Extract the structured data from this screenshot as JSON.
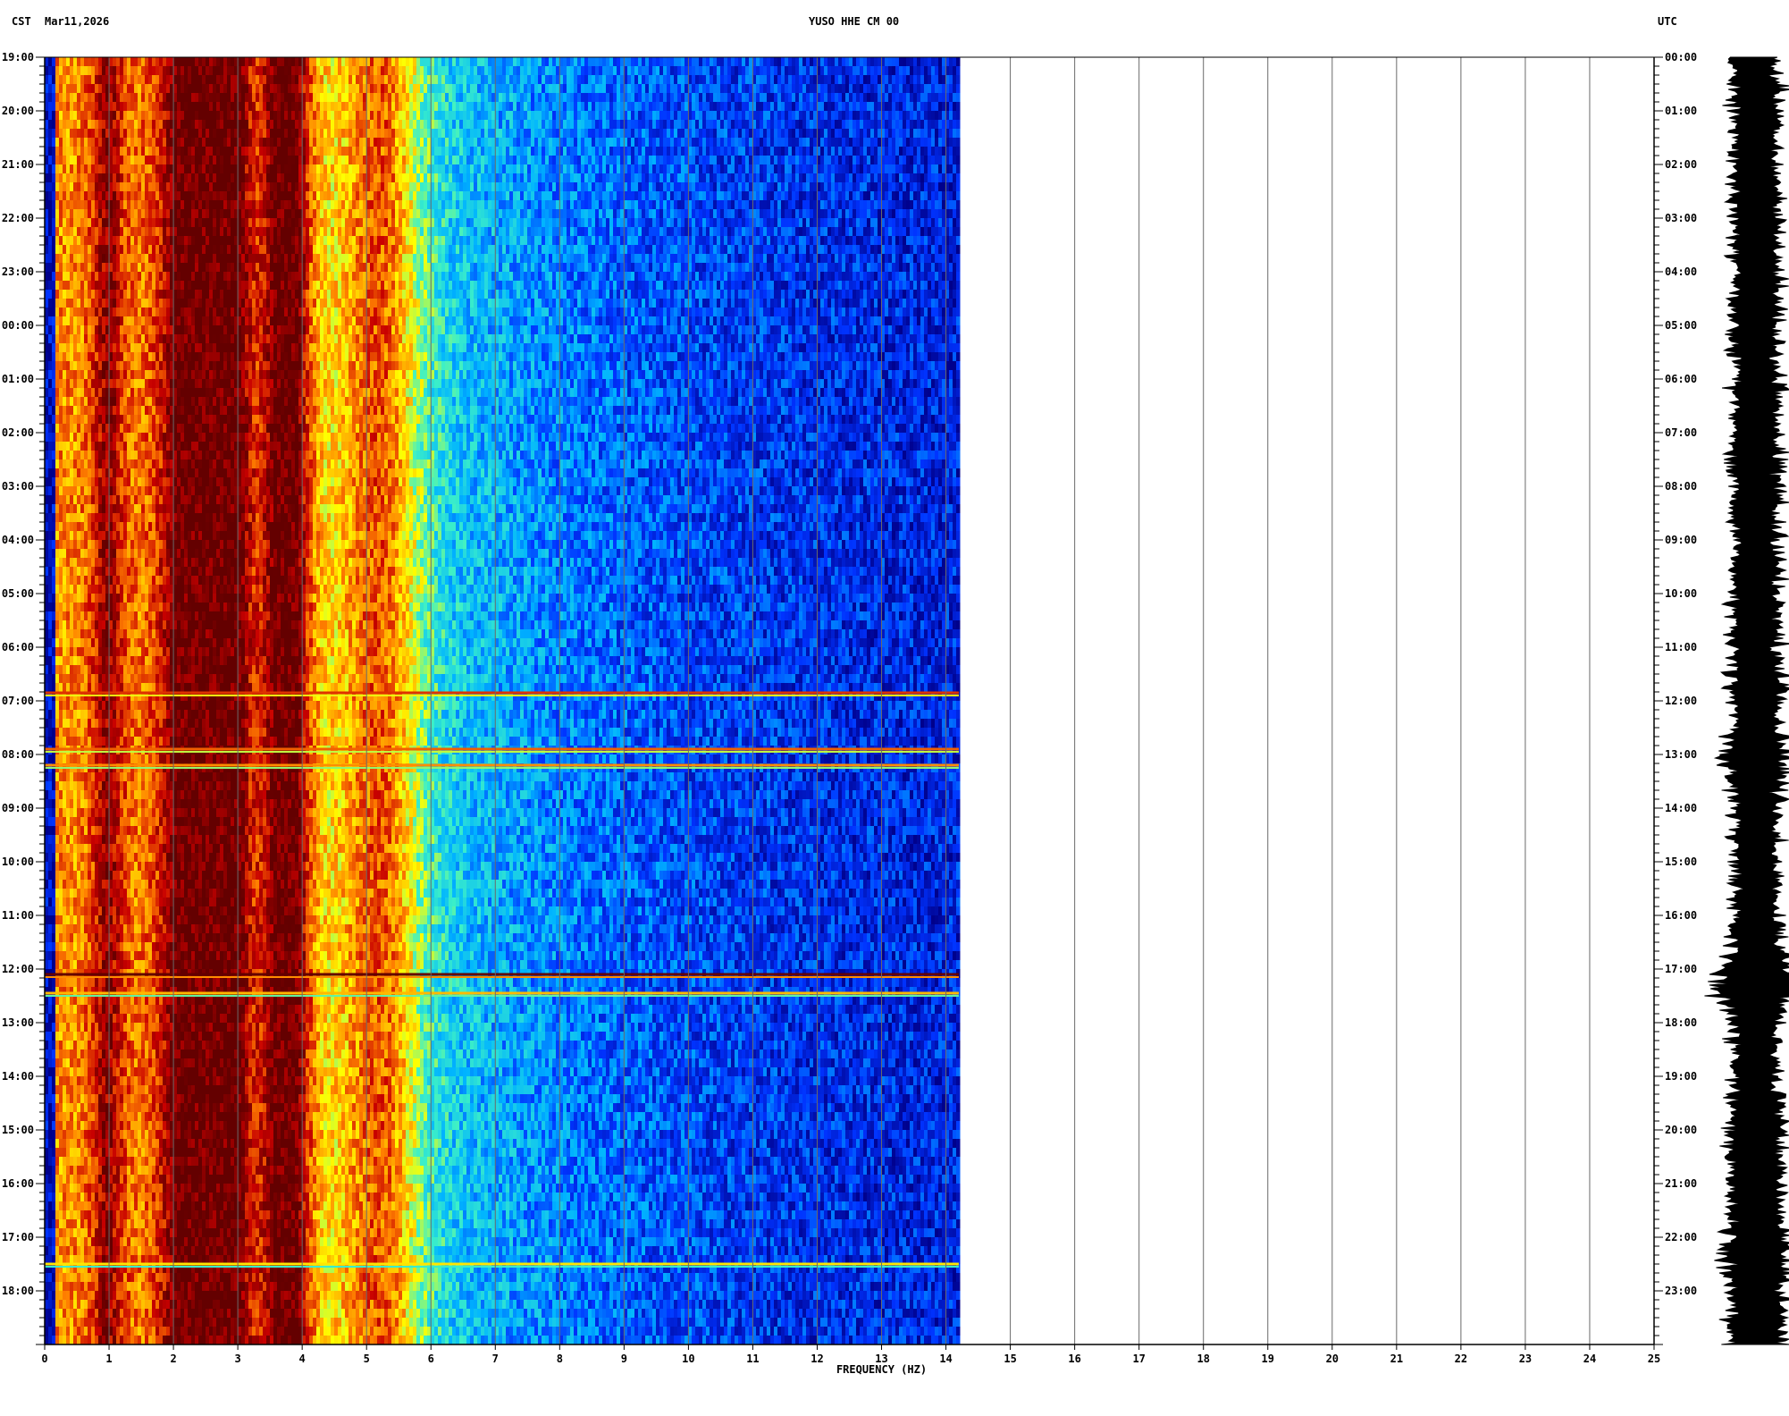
{
  "header": {
    "tz_left": "CST",
    "date": "Mar11,2026",
    "station": "YUSO HHE CM 00",
    "tz_right": "UTC"
  },
  "chart_data": {
    "type": "heatmap",
    "title": "YUSO HHE CM 00",
    "xlabel": "FREQUENCY (HZ)",
    "xlim": [
      0,
      25
    ],
    "x_ticks": [
      "0",
      "1",
      "2",
      "3",
      "4",
      "5",
      "6",
      "7",
      "8",
      "9",
      "10",
      "11",
      "12",
      "13",
      "14",
      "15",
      "16",
      "17",
      "18",
      "19",
      "20",
      "21",
      "22",
      "23",
      "24",
      "25"
    ],
    "data_extent_hz": [
      0,
      14.2
    ],
    "left_axis": {
      "timezone": "CST",
      "ticks": [
        "19:00",
        "20:00",
        "21:00",
        "22:00",
        "23:00",
        "00:00",
        "01:00",
        "02:00",
        "03:00",
        "04:00",
        "05:00",
        "06:00",
        "07:00",
        "08:00",
        "09:00",
        "10:00",
        "11:00",
        "12:00",
        "13:00",
        "14:00",
        "15:00",
        "16:00",
        "17:00",
        "18:00"
      ]
    },
    "right_axis": {
      "timezone": "UTC",
      "ticks": [
        "00:00",
        "01:00",
        "02:00",
        "03:00",
        "04:00",
        "05:00",
        "06:00",
        "07:00",
        "08:00",
        "09:00",
        "10:00",
        "11:00",
        "12:00",
        "13:00",
        "14:00",
        "15:00",
        "16:00",
        "17:00",
        "18:00",
        "19:00",
        "20:00",
        "21:00",
        "22:00",
        "23:00"
      ]
    },
    "hours_span": 24,
    "grid": true,
    "colormap": [
      "#00008b",
      "#0033ff",
      "#00b4ff",
      "#3cf0c8",
      "#ffff00",
      "#ff8000",
      "#c80000",
      "#640000"
    ],
    "energy_bands_hz": [
      {
        "center": 2.3,
        "width": 0.5,
        "level": 0.92
      },
      {
        "center": 2.75,
        "width": 0.35,
        "level": 1.0
      },
      {
        "center": 3.75,
        "width": 0.35,
        "level": 0.95
      },
      {
        "center": 5.2,
        "width": 0.6,
        "level": 0.7
      },
      {
        "center": 0.95,
        "width": 0.25,
        "level": 0.5
      }
    ],
    "events": [
      {
        "hour": 11.85,
        "level": 0.8,
        "max_hz": 14.2
      },
      {
        "hour": 12.9,
        "level": 0.75,
        "max_hz": 14.2
      },
      {
        "hour": 13.2,
        "level": 0.7,
        "max_hz": 14.2
      },
      {
        "hour": 17.1,
        "level": 1.0,
        "max_hz": 14.2
      },
      {
        "hour": 17.45,
        "level": 0.65,
        "max_hz": 14.2
      },
      {
        "hour": 22.5,
        "level": 0.6,
        "max_hz": 14.2
      }
    ]
  }
}
